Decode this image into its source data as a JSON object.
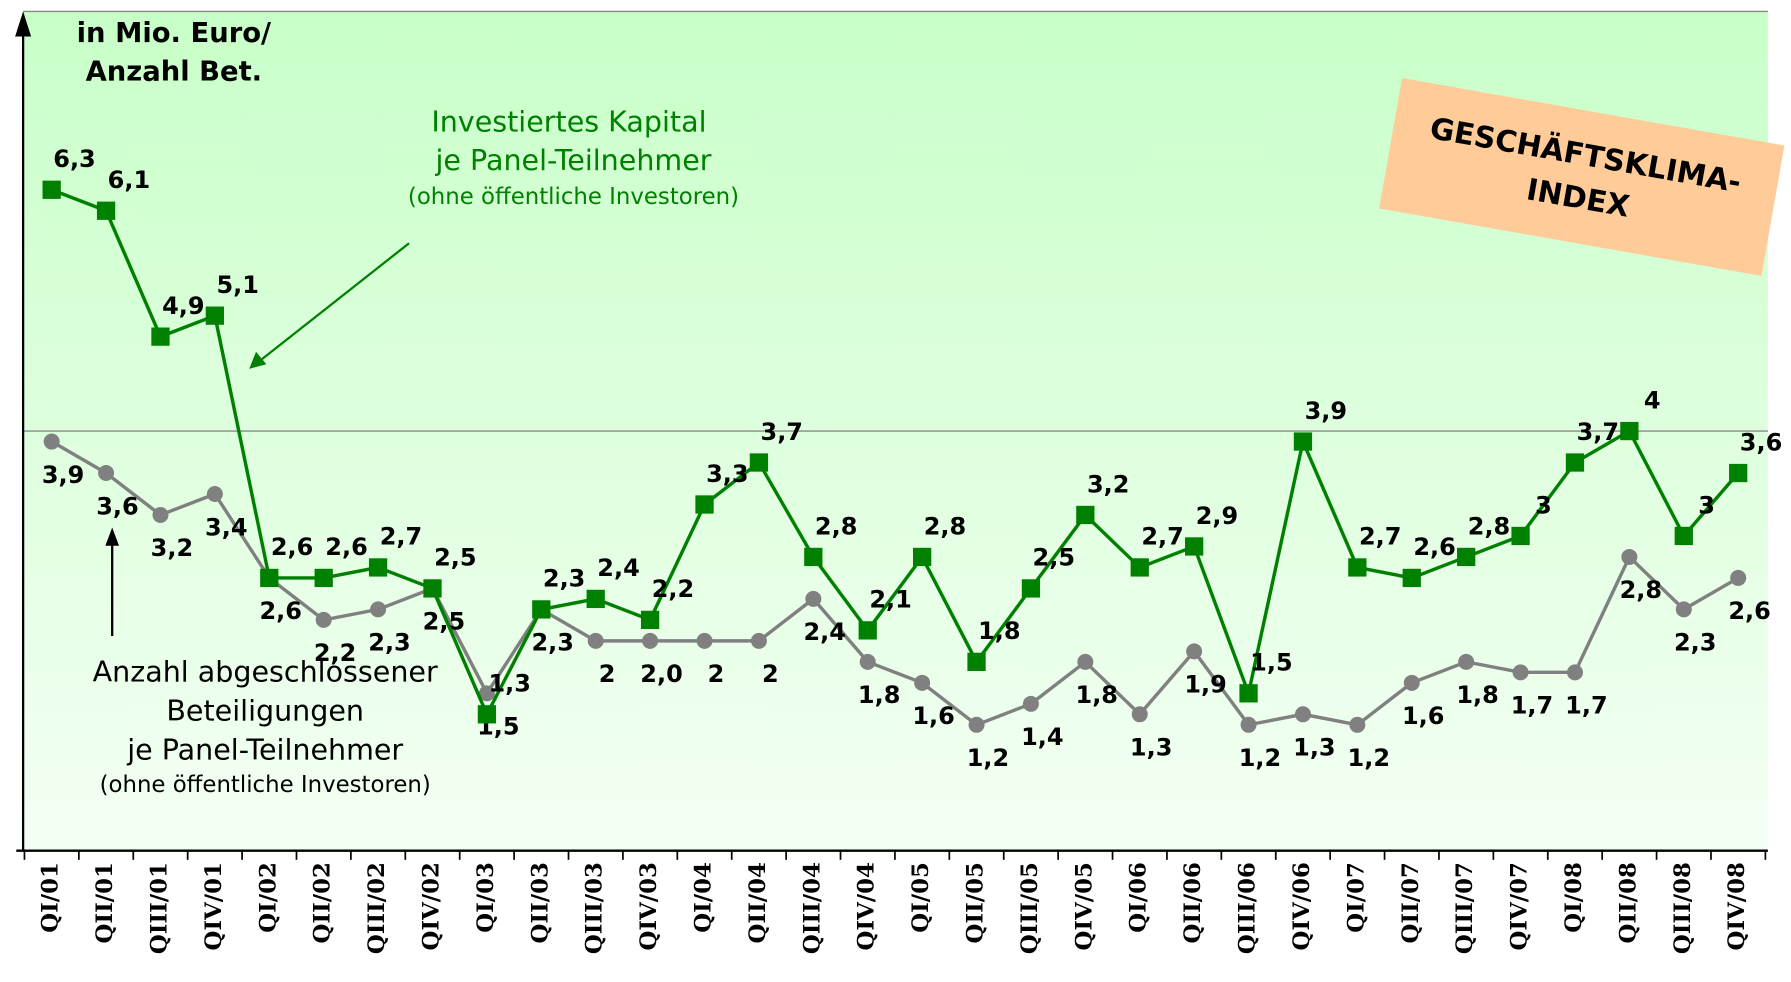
{
  "chart_data": {
    "type": "line",
    "annotations": {
      "unit": [
        "in Mio. Euro/",
        "Anzahl Bet."
      ],
      "capital": [
        "Investiertes Kapital",
        "je Panel-Teilnehmer",
        "(ohne öffentliche Investoren)"
      ],
      "count": [
        "Anzahl abgeschlossener",
        "Beteiligungen",
        "je Panel-Teilnehmer",
        "(ohne öffentliche Investoren)"
      ],
      "badge": [
        "GESCHÄFTSKLIMA-",
        "INDEX"
      ]
    },
    "categories": [
      "QI/01",
      "QII/01",
      "QIII/01",
      "QIV/01",
      "QI/02",
      "QII/02",
      "QIII/02",
      "QIV/02",
      "QI/03",
      "QII/03",
      "QIII/03",
      "QIV/03",
      "QI/04",
      "QII/04",
      "QIII/04",
      "QIV/04",
      "QI/05",
      "QII/05",
      "QIII/05",
      "QIV/05",
      "QI/06",
      "QII/06",
      "QIII/06",
      "QIV/06",
      "QI/07",
      "QII/07",
      "QIII/07",
      "QIV/07",
      "QI/08",
      "QII/08",
      "QIII/08",
      "QIV/08"
    ],
    "series": [
      {
        "name": "Investiertes Kapital je Panel-Teilnehmer",
        "color": "#008000",
        "marker": "square",
        "values": [
          6.3,
          6.1,
          4.9,
          5.1,
          2.6,
          2.6,
          2.7,
          2.5,
          1.3,
          2.3,
          2.4,
          2.2,
          3.3,
          3.7,
          2.8,
          2.1,
          2.8,
          1.8,
          2.5,
          3.2,
          2.7,
          2.9,
          1.5,
          3.9,
          2.7,
          2.6,
          2.8,
          3,
          3.7,
          4,
          3,
          3.6
        ],
        "value_labels": [
          "6,3",
          "6,1",
          "4,9",
          "5,1",
          "2,6",
          "2,6",
          "2,7",
          "2,5",
          "1,3",
          "2,3",
          "2,4",
          "2,2",
          "3,3",
          "3,7",
          "2,8",
          "2,1",
          "2,8",
          "1,8",
          "2,5",
          "3,2",
          "2,7",
          "2,9",
          "1,5",
          "3,9",
          "2,7",
          "2,6",
          "2,8",
          "3",
          "3,7",
          "4",
          "3",
          "3,6"
        ]
      },
      {
        "name": "Anzahl abgeschlossener Beteiligungen je Panel-Teilnehmer",
        "color": "#808080",
        "marker": "circle",
        "values": [
          3.9,
          3.6,
          3.2,
          3.4,
          2.6,
          2.2,
          2.3,
          2.5,
          1.5,
          2.3,
          2,
          2,
          2,
          2,
          2.4,
          1.8,
          1.6,
          1.2,
          1.4,
          1.8,
          1.3,
          1.9,
          1.2,
          1.3,
          1.2,
          1.6,
          1.8,
          1.7,
          1.7,
          2.8,
          2.3,
          2.6
        ],
        "value_labels": [
          "3,9",
          "3,6",
          "3,2",
          "3,4",
          "2,6",
          "2,2",
          "2,3",
          "2,5",
          "1,5",
          "2,3",
          "2",
          "2,0",
          "2",
          "2",
          "2,4",
          "1,8",
          "1,6",
          "1,2",
          "1,4",
          "1,8",
          "1,3",
          "1,9",
          "1,2",
          "1,3",
          "1,2",
          "1,6",
          "1,8",
          "1,7",
          "1,7",
          "2,8",
          "2,3",
          "2,6"
        ]
      }
    ],
    "ylim": [
      0,
      8
    ],
    "grid_values": [
      4,
      8
    ]
  }
}
